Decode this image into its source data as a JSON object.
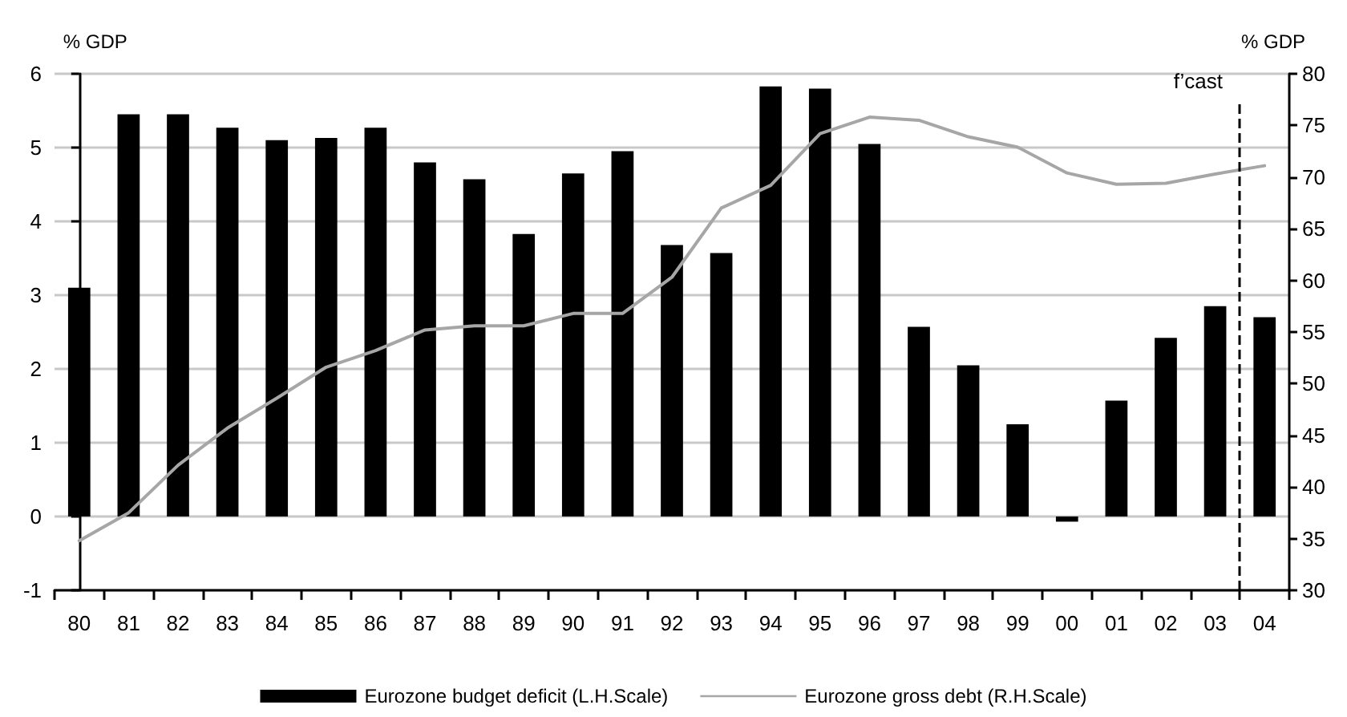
{
  "chart_data": {
    "type": "bar",
    "ylabel": "% GDP",
    "y2label": "% GDP",
    "categories": [
      "80",
      "81",
      "82",
      "83",
      "84",
      "85",
      "86",
      "87",
      "88",
      "89",
      "90",
      "91",
      "92",
      "93",
      "94",
      "95",
      "96",
      "97",
      "98",
      "99",
      "00",
      "01",
      "02",
      "03",
      "04"
    ],
    "series": [
      {
        "name": "Eurozone budget deficit (L.H.Scale)",
        "color": "#000000",
        "values": [
          3.1,
          5.45,
          5.45,
          5.27,
          5.1,
          5.13,
          5.27,
          4.8,
          4.57,
          3.83,
          4.65,
          4.95,
          3.68,
          3.57,
          5.83,
          5.8,
          5.05,
          2.57,
          2.05,
          1.25,
          -0.07,
          1.57,
          2.42,
          2.85,
          2.7
        ]
      },
      {
        "name": "Eurozone gross debt (R.H.Scale)",
        "type": "line",
        "axis": "y2",
        "color": "#a6a6a6",
        "marker": "none",
        "line_style": "solid",
        "values": [
          34.8,
          37.5,
          42.1,
          45.7,
          48.6,
          51.6,
          53.2,
          55.2,
          55.6,
          55.6,
          56.8,
          56.8,
          60.3,
          67,
          69.2,
          74.2,
          75.8,
          75.5,
          73.9,
          72.9,
          70.4,
          69.3,
          69.4,
          70.3,
          71.1
        ]
      }
    ],
    "ylim": [
      -1,
      6
    ],
    "yticks": [
      -1,
      0,
      1,
      2,
      3,
      4,
      5,
      6
    ],
    "y2lim": [
      30,
      80
    ],
    "y2ticks": [
      30,
      35,
      40,
      45,
      50,
      55,
      60,
      65,
      70,
      75,
      80
    ],
    "ref_lines": [
      {
        "axis": "x",
        "value": "03",
        "label": "f’cast",
        "color": "#000000",
        "line_style": "dashed"
      }
    ],
    "grid": "y",
    "legend": "bottom"
  }
}
